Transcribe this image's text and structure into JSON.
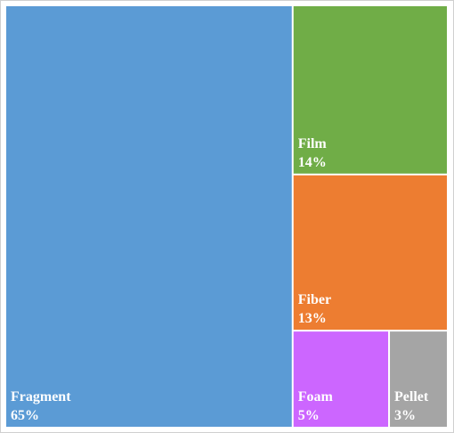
{
  "chart_data": {
    "type": "treemap",
    "categories": [
      "Fragment",
      "Film",
      "Fiber",
      "Foam",
      "Pellet"
    ],
    "values": [
      65,
      14,
      13,
      5,
      3
    ],
    "value_labels": [
      "65%",
      "14%",
      "13%",
      "5%",
      "3%"
    ],
    "colors": [
      "#5b9bd5",
      "#70ad47",
      "#ed7d31",
      "#cc66ff",
      "#a5a5a5"
    ]
  }
}
